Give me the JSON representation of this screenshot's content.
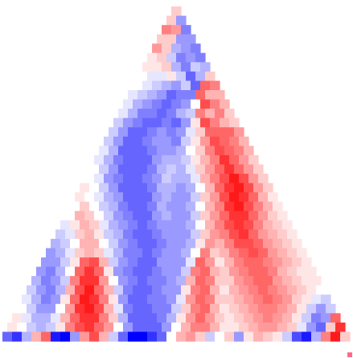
{
  "colors": {
    "positive": "#ff0000",
    "negative": "#0000ff",
    "neutral": "#ffffff"
  },
  "chart_data": {
    "type": "heatmap",
    "shape": "triangle",
    "grid_size": 36,
    "value_range": [
      -1,
      1
    ],
    "colormap": "blue-white-red",
    "grid": false,
    "legend": "none",
    "values": [
      [
        0.2
      ],
      [
        0.2,
        -0.4
      ],
      [
        0.5,
        0.4,
        -0.5
      ],
      [
        0.2,
        0.2,
        -0.4,
        -0.4
      ],
      [
        0.4,
        0.2,
        -0.3,
        -0.4,
        -0.5
      ],
      [
        0.1,
        0.2,
        -0.2,
        -0.5,
        -0.4,
        -0.5
      ],
      [
        0.1,
        0.1,
        0.2,
        -0.3,
        -0.5,
        -0.2,
        -0.3
      ],
      [
        0.0,
        -0.1,
        -0.1,
        0.1,
        -0.2,
        -0.6,
        -0.3,
        0.2
      ],
      [
        0.0,
        -0.1,
        -0.2,
        -0.3,
        -0.4,
        -0.2,
        -0.6,
        0.6,
        0.5
      ],
      [
        -0.1,
        -0.2,
        -0.3,
        -0.4,
        -0.6,
        -0.5,
        -0.5,
        0.6,
        0.3,
        0.3
      ],
      [
        -0.1,
        -0.3,
        -0.4,
        -0.5,
        -0.6,
        -0.5,
        -0.4,
        0.0,
        0.7,
        0.5,
        0.3
      ],
      [
        -0.1,
        -0.3,
        -0.5,
        -0.5,
        -0.6,
        -0.5,
        -0.3,
        -0.2,
        0.5,
        0.3,
        0.5,
        0.2
      ],
      [
        -0.2,
        -0.4,
        -0.5,
        -0.6,
        -0.6,
        -0.5,
        -0.6,
        -0.4,
        0.1,
        0.7,
        0.5,
        0.3,
        0.2
      ],
      [
        -0.2,
        -0.4,
        -0.6,
        -0.6,
        -0.5,
        -0.4,
        -0.5,
        -0.4,
        -0.1,
        0.2,
        0.6,
        0.6,
        0.6,
        0.4
      ],
      [
        -0.2,
        -0.4,
        -0.6,
        -0.6,
        -0.5,
        -0.4,
        -0.4,
        -0.5,
        -0.2,
        0.1,
        0.4,
        0.7,
        0.6,
        0.5,
        0.3
      ],
      [
        -0.1,
        -0.3,
        -0.6,
        -0.6,
        -0.6,
        -0.5,
        -0.4,
        -0.4,
        -0.3,
        0.0,
        0.2,
        0.5,
        0.7,
        0.6,
        0.5,
        0.3
      ],
      [
        -0.1,
        -0.3,
        -0.5,
        -0.6,
        -0.6,
        -0.6,
        -0.4,
        -0.3,
        -0.3,
        -0.2,
        0.1,
        0.3,
        0.5,
        0.8,
        0.6,
        0.4,
        0.2
      ],
      [
        0.0,
        -0.2,
        -0.4,
        -0.6,
        -0.6,
        -0.6,
        -0.5,
        -0.3,
        -0.2,
        -0.3,
        -0.1,
        0.2,
        0.4,
        0.6,
        0.8,
        0.6,
        0.4,
        0.2
      ],
      [
        0.0,
        -0.1,
        -0.4,
        -0.5,
        -0.6,
        -0.6,
        -0.5,
        -0.4,
        -0.2,
        -0.3,
        -0.3,
        -0.1,
        0.3,
        0.5,
        0.7,
        0.9,
        0.7,
        0.4,
        0.2
      ],
      [
        0.1,
        0.0,
        -0.2,
        -0.4,
        -0.6,
        -0.6,
        -0.6,
        -0.5,
        -0.3,
        -0.3,
        -0.4,
        -0.3,
        0.0,
        0.3,
        0.6,
        0.8,
        0.9,
        0.7,
        0.4,
        0.2
      ],
      [
        0.1,
        0.0,
        -0.1,
        -0.3,
        -0.4,
        -0.6,
        -0.6,
        -0.6,
        -0.4,
        -0.3,
        -0.4,
        -0.4,
        -0.2,
        0.2,
        0.4,
        0.7,
        0.9,
        0.8,
        0.6,
        0.3,
        0.1
      ],
      [
        0.0,
        0.2,
        0.0,
        -0.2,
        -0.3,
        -0.5,
        -0.6,
        -0.6,
        -0.5,
        -0.3,
        -0.4,
        -0.4,
        -0.3,
        0.0,
        0.3,
        0.5,
        0.8,
        0.9,
        0.7,
        0.5,
        0.3,
        0.1
      ],
      [
        0.0,
        0.3,
        0.2,
        0.0,
        -0.2,
        -0.4,
        -0.5,
        -0.6,
        -0.6,
        -0.4,
        -0.3,
        -0.4,
        -0.4,
        -0.2,
        0.2,
        0.4,
        0.6,
        0.8,
        0.8,
        0.6,
        0.4,
        0.2,
        0.1
      ],
      [
        -0.1,
        0.1,
        0.3,
        0.2,
        -0.1,
        -0.3,
        -0.4,
        -0.5,
        -0.6,
        -0.5,
        -0.4,
        -0.4,
        -0.4,
        -0.3,
        0.0,
        0.3,
        0.5,
        0.7,
        0.8,
        0.7,
        0.5,
        0.3,
        0.2,
        0.1
      ],
      [
        -0.2,
        -0.1,
        0.2,
        0.3,
        0.1,
        -0.2,
        -0.3,
        -0.5,
        -0.6,
        -0.6,
        -0.5,
        -0.4,
        -0.4,
        -0.4,
        -0.2,
        0.2,
        0.4,
        0.5,
        0.7,
        0.8,
        0.6,
        0.4,
        0.3,
        0.2,
        0.1
      ],
      [
        -0.3,
        -0.2,
        0.0,
        0.3,
        0.3,
        0.0,
        -0.2,
        -0.4,
        -0.5,
        -0.6,
        -0.6,
        -0.5,
        -0.4,
        -0.4,
        -0.3,
        0.1,
        0.4,
        0.3,
        0.5,
        0.7,
        0.7,
        0.6,
        0.4,
        0.3,
        0.2,
        0.1
      ],
      [
        -0.4,
        -0.3,
        -0.1,
        0.2,
        0.3,
        0.2,
        -0.1,
        -0.3,
        -0.5,
        -0.5,
        -0.6,
        -0.5,
        -0.4,
        -0.4,
        -0.3,
        0.0,
        0.5,
        0.2,
        0.3,
        0.5,
        0.6,
        0.7,
        0.6,
        0.4,
        0.3,
        0.2,
        0.1
      ],
      [
        -0.4,
        -0.4,
        -0.2,
        0.1,
        0.6,
        0.7,
        0.3,
        -0.2,
        -0.4,
        -0.5,
        -0.6,
        -0.6,
        -0.4,
        -0.4,
        -0.4,
        -0.1,
        0.6,
        0.4,
        0.1,
        0.3,
        0.5,
        0.6,
        0.6,
        0.5,
        0.4,
        0.3,
        0.2,
        0.1
      ],
      [
        -0.4,
        -0.5,
        -0.3,
        0.0,
        0.6,
        0.8,
        0.6,
        0.1,
        -0.4,
        -0.5,
        -0.6,
        -0.6,
        -0.5,
        -0.4,
        -0.4,
        -0.2,
        0.5,
        0.6,
        0.3,
        0.2,
        0.4,
        0.5,
        0.6,
        0.6,
        0.5,
        0.3,
        0.2,
        0.1,
        0.1
      ],
      [
        -0.3,
        -0.5,
        -0.4,
        -0.2,
        0.5,
        0.8,
        0.8,
        0.4,
        0.0,
        -0.4,
        -0.5,
        -0.6,
        -0.5,
        -0.5,
        -0.4,
        -0.3,
        0.3,
        0.6,
        0.5,
        0.2,
        0.2,
        0.4,
        0.5,
        0.6,
        0.6,
        0.4,
        0.3,
        0.2,
        0.1,
        0.1
      ],
      [
        -0.2,
        -0.4,
        -0.5,
        -0.3,
        0.3,
        0.7,
        0.9,
        0.6,
        0.3,
        -0.2,
        -0.5,
        -0.6,
        -0.6,
        -0.5,
        -0.4,
        -0.4,
        0.1,
        0.5,
        0.6,
        0.3,
        0.1,
        0.3,
        0.4,
        0.5,
        0.6,
        0.5,
        0.4,
        0.3,
        0.2,
        0.1,
        0.0
      ],
      [
        -0.1,
        -0.3,
        -0.5,
        -0.4,
        0.1,
        0.6,
        0.9,
        0.8,
        0.5,
        0.1,
        -0.4,
        -0.6,
        -0.6,
        -0.5,
        -0.5,
        -0.4,
        -0.1,
        0.4,
        0.6,
        0.5,
        0.2,
        0.2,
        0.3,
        0.4,
        0.5,
        0.6,
        0.5,
        0.4,
        0.2,
        0.1,
        -0.1,
        -0.2
      ],
      [
        0.0,
        -0.2,
        -0.4,
        -0.4,
        0.0,
        0.4,
        0.8,
        0.9,
        0.7,
        0.3,
        -0.1,
        -0.5,
        -0.6,
        -0.6,
        -0.5,
        -0.5,
        -0.2,
        0.2,
        0.5,
        0.6,
        0.3,
        0.1,
        0.2,
        0.3,
        0.4,
        0.5,
        0.5,
        0.4,
        0.3,
        0.1,
        -0.2,
        -0.4,
        -0.2
      ],
      [
        0.1,
        -0.1,
        -0.3,
        -0.3,
        -0.1,
        0.3,
        0.6,
        0.8,
        0.8,
        0.5,
        0.2,
        -0.3,
        -0.6,
        -0.6,
        -0.6,
        -0.5,
        -0.3,
        0.1,
        0.4,
        0.6,
        0.4,
        0.2,
        0.1,
        0.2,
        0.3,
        0.4,
        0.5,
        0.4,
        0.3,
        0.1,
        -0.2,
        -0.5,
        -0.4,
        0.6
      ],
      [
        0.1,
        0.0,
        -0.2,
        -0.3,
        -0.2,
        0.1,
        0.5,
        0.7,
        0.8,
        0.6,
        0.4,
        0.0,
        -0.4,
        -0.6,
        -0.6,
        -0.6,
        -0.4,
        0.0,
        0.3,
        0.5,
        0.5,
        0.3,
        0.1,
        0.1,
        0.2,
        0.3,
        0.4,
        0.4,
        0.3,
        0.2,
        -0.1,
        -0.4,
        -0.6,
        0.2,
        0.8
      ],
      [
        -0.6,
        -0.8,
        -0.3,
        0.3,
        0.6,
        -0.9,
        -1.0,
        -0.4,
        0.4,
        0.7,
        0.3,
        -0.2,
        -0.6,
        -1.0,
        -1.0,
        -0.8,
        -0.6,
        0.0,
        0.3,
        0.4,
        0.2,
        -0.2,
        0.0,
        0.2,
        -0.4,
        0.1,
        0.3,
        0.2,
        0.1,
        -0.2,
        -0.7,
        -0.9,
        -0.3,
        0.5,
        0.9,
        0.2
      ]
    ]
  }
}
